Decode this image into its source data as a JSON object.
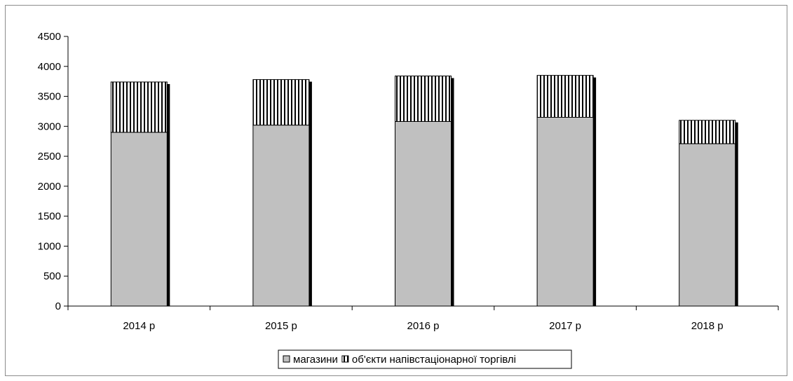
{
  "chart_data": {
    "type": "bar",
    "stacked": true,
    "categories": [
      "2014 р",
      "2015 р",
      "2016 р",
      "2017 р",
      "2018 р"
    ],
    "series": [
      {
        "name": "магазини",
        "values": [
          2900,
          3020,
          3080,
          3150,
          2710
        ],
        "fill": "#c0c0c0",
        "pattern": "solid"
      },
      {
        "name": "об'єкти напівстаціонарної торгівлі",
        "values": [
          840,
          760,
          760,
          700,
          390
        ],
        "fill": "#ffffff",
        "pattern": "vertical-stripes"
      }
    ],
    "ylim": [
      0,
      4500
    ],
    "yticks": [
      0,
      500,
      1000,
      1500,
      2000,
      2500,
      3000,
      3500,
      4000,
      4500
    ],
    "title": "",
    "xlabel": "",
    "ylabel": "",
    "grid": false,
    "legend_position": "bottom",
    "bar_shadow_color": "#000000"
  }
}
